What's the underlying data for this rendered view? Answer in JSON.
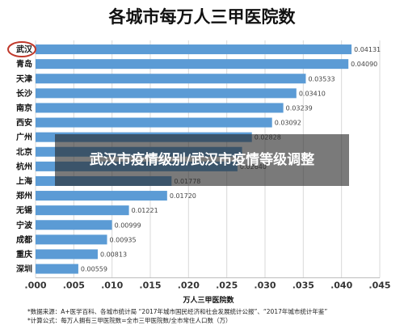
{
  "overlay_caption": "武汉市疫情级别/武汉市疫情等级调整",
  "chart_data": {
    "type": "bar",
    "orientation": "horizontal",
    "title": "各城市每万人三甲医院数",
    "xlabel": "万人三甲医院数",
    "ylabel": "",
    "xlim": [
      0,
      0.045
    ],
    "ticks": [
      ".000",
      ".005",
      ".010",
      ".015",
      ".020",
      ".025",
      ".030",
      ".035",
      ".040",
      ".045"
    ],
    "categories": [
      "武汉",
      "青岛",
      "天津",
      "长沙",
      "南京",
      "西安",
      "广州",
      "北京",
      "杭州",
      "上海",
      "郑州",
      "无锡",
      "宁波",
      "成都",
      "重庆",
      "深圳"
    ],
    "values": [
      0.04131,
      0.0409,
      0.03533,
      0.0341,
      0.03239,
      0.03092,
      0.02828,
      0.027,
      0.0264,
      0.01778,
      0.0172,
      0.01221,
      0.00999,
      0.00935,
      0.00813,
      0.00559
    ],
    "value_labels": [
      "0.04131",
      "0.04090",
      "0.03533",
      "0.03410",
      "0.03239",
      "0.03092",
      "0.02828",
      "",
      "0.02640",
      "0.01778",
      "0.01720",
      "0.01221",
      "0.00999",
      "0.00935",
      "0.00813",
      "0.00559"
    ],
    "highlight_category": "武汉",
    "grid": true,
    "colors": {
      "bar": "#5b9bd5",
      "grid": "#d9d9d9",
      "highlight_ring": "#c0392b"
    }
  },
  "footnotes": [
    "*数据来源：A+医学百科、各城市统计局 “2017年城市国民经济和社会发展统计公报”、“2017年城市统计年鉴”",
    "*计算公式：每万人拥有三甲医院数=全市三甲医院数/全市常住人口数（万）"
  ]
}
